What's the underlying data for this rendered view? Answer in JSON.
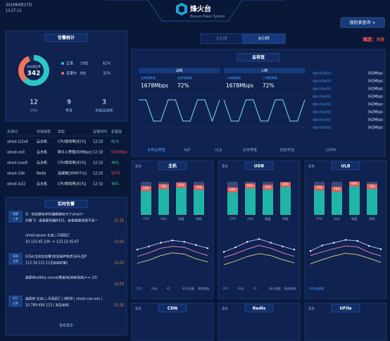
{
  "header": {
    "date": "2019年8月27日",
    "time": "13:27:12",
    "title": "烽火台",
    "subtitle": "Beacon Tower System",
    "button": "值班表查询 >"
  },
  "alarm_stats": {
    "title": "告警统计",
    "donut_label": "未处理告警",
    "donut_value": "342",
    "donut": {
      "values": [
        62,
        32
      ],
      "colors": [
        "#2ec7c9",
        "#f0735a"
      ]
    },
    "legend": [
      {
        "name": "正常",
        "count": "19台",
        "pct": "62%"
      },
      {
        "name": "告警中",
        "count": "8台",
        "pct": "32%"
      }
    ],
    "stats": [
      {
        "value": "12",
        "label": "CPU"
      },
      {
        "value": "9",
        "label": "带宽"
      },
      {
        "value": "3",
        "label": "新建连接数"
      }
    ]
  },
  "alarm_table": {
    "headers": [
      "资源ID",
      "资源类型",
      "类型",
      "告警时间",
      "告警值"
    ],
    "rows": [
      [
        "uhost-i12v0",
        "云主机",
        "CPU使用率[81%]",
        "12:32",
        "81%"
      ],
      [
        "uhost-ev0",
        "云主机",
        "网卡入带宽[60Mbps]",
        "12:32",
        "676Mbps"
      ],
      [
        "uhost-isuv0",
        "云主机",
        "CPU使用率[81%]",
        "12:32",
        "46%"
      ],
      [
        "uhost-33e",
        "Redis",
        "连接数[5000个/s]",
        "12:32",
        "5670"
      ],
      [
        "uhost-is22",
        "云主机",
        "CPU使用率[81%]",
        "12:32",
        "46%"
      ]
    ],
    "value_colors": [
      "#3ddc97",
      "#ff4d4f",
      "#3ddc97",
      "#ff4d4f",
      "#3ddc97"
    ]
  },
  "realtime": {
    "title": "实时告警",
    "items": [
      {
        "tag": [
          "提醒",
          "工单"
        ],
        "lines": [
          "Q：热忽期存多机器都被动卡了uhost~",
          "托腾飞：查看那机器8433，查看随是资源不足~"
        ],
        "time": "11:31"
      },
      {
        "lines": [
          "uhost-qxxxx 北京二可用区C",
          "10.123.45.234 -> 123.23.45.67"
        ],
        "time": "11:02"
      },
      {
        "tag": [
          "网络",
          "告警"
        ],
        "lines": [
          "[USec][攻击告警]攻击保护机房[目大][JP",
          "112.34.123.12][自动封堵]"
        ],
        "time": "11:02"
      },
      {
        "lines": [
          "盖照剂udbha-xxxxx[慢查询]消耗很高(>= 10)"
        ],
        "time": "11:02"
      },
      {
        "tag": [
          "VCC",
          "告警"
        ],
        "lines": [
          "盖照剂 北京二-可用区C | HB08 | uhost-xxx-xxx |",
          "10.789.456.123 | 发生宕机"
        ],
        "time": "11:31"
      }
    ],
    "more": "查看更多"
  },
  "controls": {
    "tabs": [
      "2小时",
      "6小时"
    ],
    "active": 1,
    "threshold": "阈度：5分"
  },
  "bandwidth": {
    "title": "总带宽",
    "ylim": [
      0,
      100
    ],
    "color": "#7fe0ff",
    "charts": [
      {
        "header": "出精",
        "peak_label": "出带宽峰值",
        "peak_value": "1678Mbps",
        "rate_label": "出带宽峰值",
        "rate_value": "72%",
        "values": [
          85,
          85,
          18,
          18,
          85,
          85,
          18,
          18,
          85,
          85,
          18,
          85
        ]
      },
      {
        "header": "入精",
        "peak_label": "入带宽峰值",
        "peak_value": "1678Mbps",
        "rate_label": "入带宽峰值",
        "rate_value": "72%",
        "values": [
          85,
          18,
          18,
          85,
          85,
          18,
          18,
          85,
          85,
          18,
          18,
          85
        ]
      }
    ],
    "list": [
      [
        "eip-n5ax5z",
        "342Mbps"
      ],
      [
        "eip-n5ax5z",
        "342Mbps"
      ],
      [
        "eip-n5ax5z",
        "342Mbps"
      ],
      [
        "eip-n5ax5z",
        "342Mbps"
      ],
      [
        "eip-n5ax5z",
        "342Mbps"
      ],
      [
        "eip-n5ax5z",
        "342Mbps"
      ],
      [
        "eip-n5ax5z",
        "342Mbps"
      ],
      [
        "eip-n5ax5z",
        "342Mbps"
      ]
    ],
    "tabs": [
      "外网总带宽",
      "NAT",
      "ULB",
      "共享带宽",
      "回源专线",
      "UDPN"
    ]
  },
  "panels": {
    "ylim": [
      0,
      100
    ],
    "bar_color": "#1fb5a8",
    "line_colors": [
      "#c9c2ff",
      "#f08cb0",
      "#e8d27a"
    ],
    "items": [
      {
        "title": "主机",
        "more": "更多",
        "bars": {
          "categories": [
            "CPU",
            "内存",
            "磁盘",
            "网络"
          ],
          "values": [
            72,
            78,
            82,
            75
          ],
          "value_labels": [
            "72%",
            "78%",
            "82%",
            "75%"
          ]
        },
        "lines": [
          [
            55,
            62,
            70,
            75,
            72,
            65,
            58
          ],
          [
            40,
            48,
            58,
            62,
            60,
            50,
            42
          ],
          [
            25,
            32,
            42,
            48,
            45,
            35,
            28
          ]
        ],
        "legend": [
          "CPU",
          "内存",
          "IO",
          "网卡流量",
          "网络指标"
        ]
      },
      {
        "title": "UDB",
        "more": "更多",
        "bars": {
          "categories": [
            "CPU",
            "内存",
            "磁盘",
            "网络"
          ],
          "values": [
            68,
            80,
            76,
            84
          ],
          "value_labels": [
            "68%",
            "80%",
            "76%",
            "84%"
          ]
        },
        "lines": [
          [
            50,
            60,
            72,
            78,
            70,
            62,
            55
          ],
          [
            38,
            46,
            56,
            64,
            58,
            48,
            40
          ],
          [
            22,
            30,
            40,
            46,
            42,
            33,
            26
          ]
        ],
        "legend": [
          "CPU",
          "内存",
          "IO",
          "网卡流量",
          "网络指标"
        ]
      },
      {
        "title": "ULB",
        "more": "更多",
        "bars": {
          "categories": [
            "CPU",
            "内存",
            "磁盘",
            "网络"
          ],
          "values": [
            74,
            70,
            86,
            78
          ],
          "value_labels": [
            "74%",
            "70%",
            "86%",
            "78%"
          ]
        },
        "lines": [
          [
            52,
            64,
            70,
            76,
            74,
            63,
            56
          ],
          [
            42,
            50,
            57,
            63,
            61,
            49,
            41
          ],
          [
            24,
            33,
            41,
            47,
            44,
            36,
            27
          ]
        ],
        "legend": [
          "并发连接数"
        ]
      }
    ]
  },
  "bottom_panels": [
    {
      "title": "CDN",
      "more": "更多"
    },
    {
      "title": "Redis",
      "more": "更多"
    },
    {
      "title": "UFile",
      "more": "更多"
    }
  ]
}
